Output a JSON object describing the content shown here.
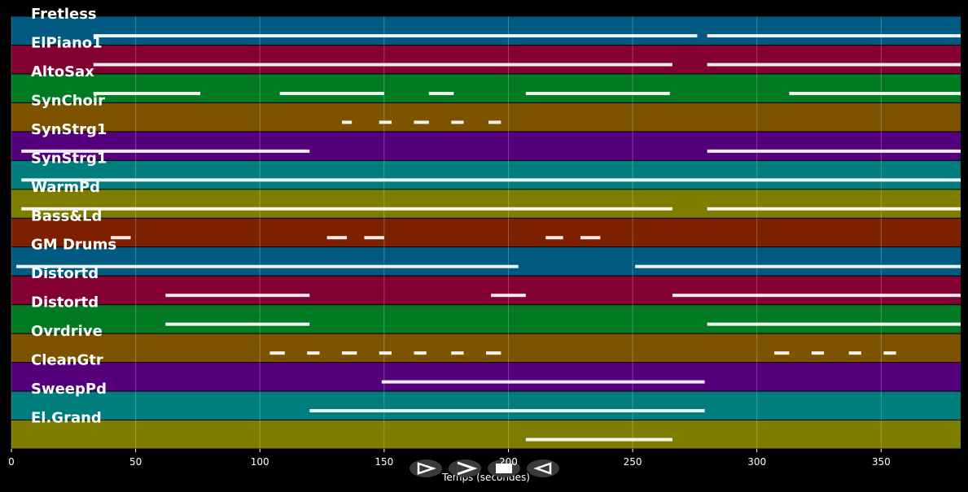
{
  "chart_data": {
    "type": "timeline",
    "xlabel": "Temps (secondes)",
    "xlim": [
      0,
      382
    ],
    "xticks": [
      0,
      50,
      100,
      150,
      200,
      250,
      300,
      350
    ],
    "grid": true,
    "tracks": [
      {
        "name": "Fretless",
        "color": "#005a82",
        "spans": [
          [
            33,
            276
          ],
          [
            280,
            382
          ]
        ]
      },
      {
        "name": "ElPiano1",
        "color": "#820032",
        "spans": [
          [
            33,
            266
          ],
          [
            280,
            382
          ]
        ]
      },
      {
        "name": "AltoSax",
        "color": "#007a23",
        "spans": [
          [
            33,
            76
          ],
          [
            108,
            150
          ],
          [
            168,
            178
          ],
          [
            207,
            265
          ],
          [
            313,
            382
          ]
        ]
      },
      {
        "name": "SynChoir",
        "color": "#7d5300",
        "spans": [
          [
            133,
            137
          ],
          [
            148,
            153
          ],
          [
            162,
            168
          ],
          [
            177,
            182
          ],
          [
            192,
            197
          ]
        ]
      },
      {
        "name": "SynStrg1",
        "color": "#54007d",
        "spans": [
          [
            4,
            120
          ],
          [
            280,
            382
          ]
        ]
      },
      {
        "name": "SynStrg1",
        "color": "#007d7d",
        "spans": [
          [
            4,
            382
          ]
        ]
      },
      {
        "name": "WarmPd",
        "color": "#7d7d00",
        "spans": [
          [
            4,
            266
          ],
          [
            280,
            382
          ]
        ]
      },
      {
        "name": "Bass&Ld",
        "color": "#7d2000",
        "spans": [
          [
            40,
            48
          ],
          [
            127,
            135
          ],
          [
            142,
            150
          ],
          [
            215,
            222
          ],
          [
            229,
            237
          ]
        ]
      },
      {
        "name": "GM Drums",
        "color": "#005a82",
        "spans": [
          [
            2,
            204
          ],
          [
            251,
            382
          ]
        ]
      },
      {
        "name": "Distortd",
        "color": "#820032",
        "spans": [
          [
            62,
            120
          ],
          [
            193,
            207
          ],
          [
            266,
            382
          ]
        ]
      },
      {
        "name": "Distortd",
        "color": "#007a23",
        "spans": [
          [
            62,
            120
          ],
          [
            280,
            382
          ]
        ]
      },
      {
        "name": "Ovrdrive",
        "color": "#7d5300",
        "spans": [
          [
            104,
            110
          ],
          [
            119,
            124
          ],
          [
            133,
            139
          ],
          [
            148,
            153
          ],
          [
            162,
            167
          ],
          [
            177,
            182
          ],
          [
            191,
            197
          ],
          [
            307,
            313
          ],
          [
            322,
            327
          ],
          [
            337,
            342
          ],
          [
            351,
            356
          ]
        ]
      },
      {
        "name": "CleanGtr",
        "color": "#54007d",
        "spans": [
          [
            149,
            279
          ]
        ]
      },
      {
        "name": "SweepPd",
        "color": "#007d7d",
        "spans": [
          [
            120,
            279
          ]
        ]
      },
      {
        "name": "El.Grand",
        "color": "#7d7d00",
        "spans": [
          [
            207,
            266
          ]
        ]
      }
    ]
  }
}
